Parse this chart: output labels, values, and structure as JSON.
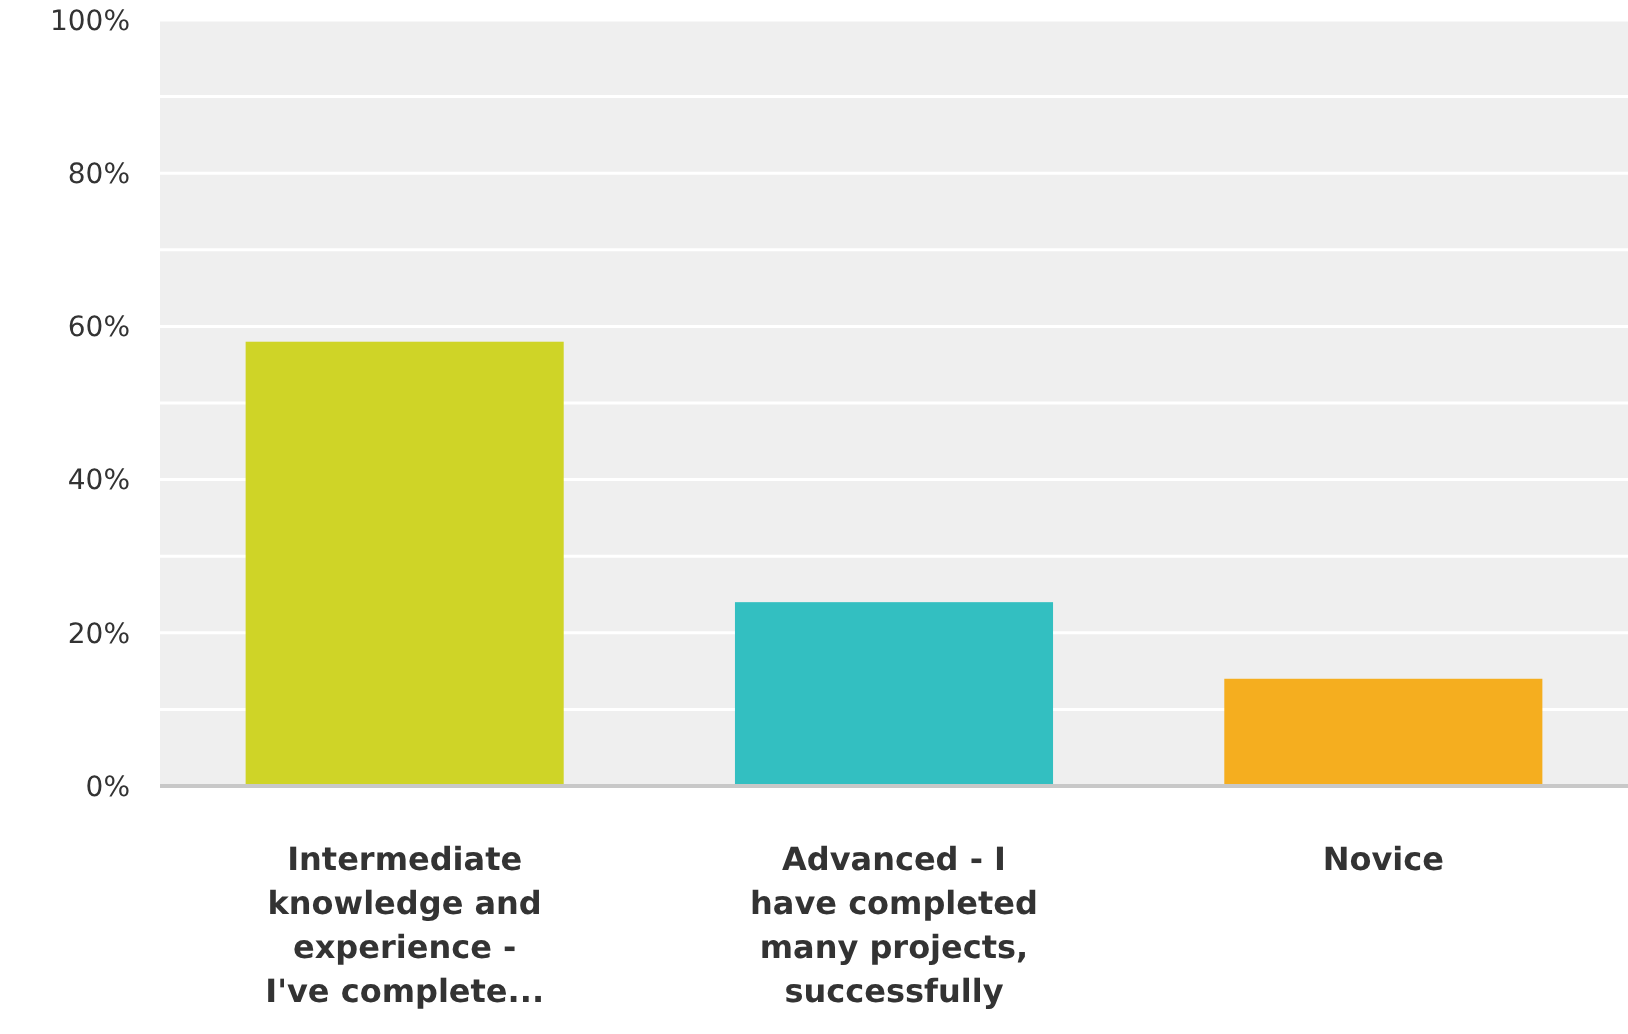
{
  "chart_data": {
    "type": "bar",
    "categories": [
      "Intermediate knowledge and experience - I've complete...",
      "Advanced - I have completed many projects, successfully",
      "Novice"
    ],
    "values": [
      58,
      24,
      14
    ],
    "colors": [
      "#cfd427",
      "#33bfc1",
      "#f5ae1f"
    ],
    "ylim": [
      0,
      100
    ],
    "yticks": [
      {
        "value": 0,
        "label": "0%"
      },
      {
        "value": 10,
        "label": null
      },
      {
        "value": 20,
        "label": "20%"
      },
      {
        "value": 30,
        "label": null
      },
      {
        "value": 40,
        "label": "40%"
      },
      {
        "value": 50,
        "label": null
      },
      {
        "value": 60,
        "label": "60%"
      },
      {
        "value": 70,
        "label": null
      },
      {
        "value": 80,
        "label": "80%"
      },
      {
        "value": 90,
        "label": null
      },
      {
        "value": 100,
        "label": "100%"
      }
    ],
    "grid": true
  }
}
